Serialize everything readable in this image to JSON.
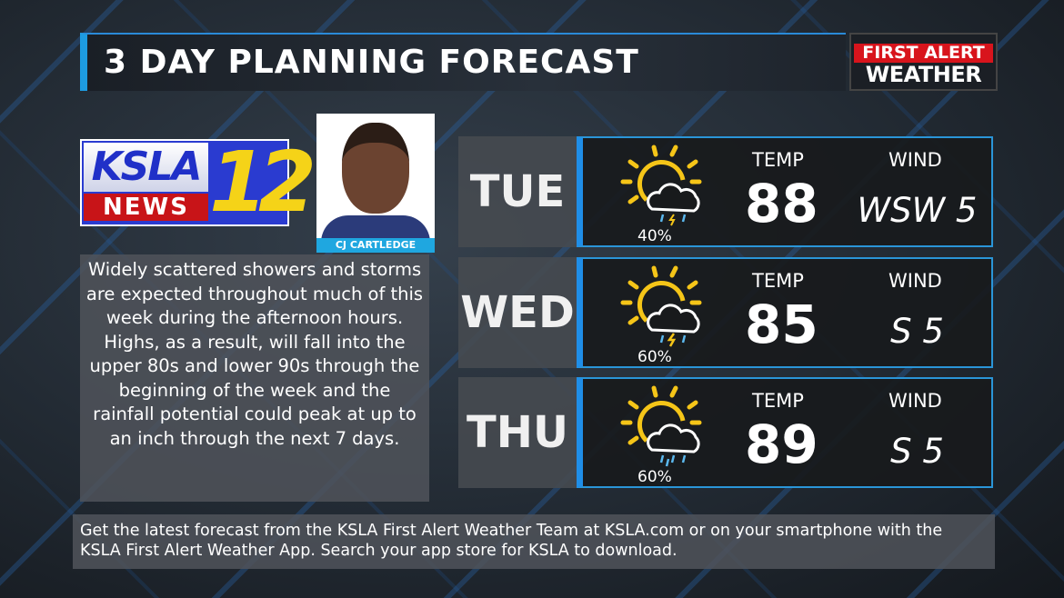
{
  "header": {
    "title": "3 DAY PLANNING FORECAST",
    "brand_line1": "FIRST ALERT",
    "brand_line2": "WEATHER"
  },
  "station_logo": {
    "text1": "KSLA",
    "text2": "NEWS",
    "text3": "12"
  },
  "presenter": {
    "name": "CJ CARTLEDGE"
  },
  "description": "Widely scattered showers and storms are expected throughout much of this week during the afternoon hours. Highs, as a result, will fall into the upper 80s and lower 90s through the beginning of the week and the rainfall potential could peak at up to an inch through the next 7 days.",
  "labels": {
    "temp": "TEMP",
    "wind": "WIND"
  },
  "days": [
    {
      "day": "TUE",
      "icon": "sun-cloud-thunderstorm-icon",
      "precip": "40%",
      "temp": "88",
      "wind": "WSW 5"
    },
    {
      "day": "WED",
      "icon": "sun-cloud-thunderstorm-icon",
      "precip": "60%",
      "temp": "85",
      "wind": "S 5"
    },
    {
      "day": "THU",
      "icon": "sun-cloud-rain-icon",
      "precip": "60%",
      "temp": "89",
      "wind": "S 5"
    }
  ],
  "footer": "Get the latest forecast from the KSLA First Alert Weather Team at KSLA.com or on your smartphone with the KSLA First Alert Weather App. Search your app store for KSLA to download.",
  "colors": {
    "accent": "#1f8ee8",
    "sun": "#f5c518",
    "brand_red": "#d8141c"
  }
}
